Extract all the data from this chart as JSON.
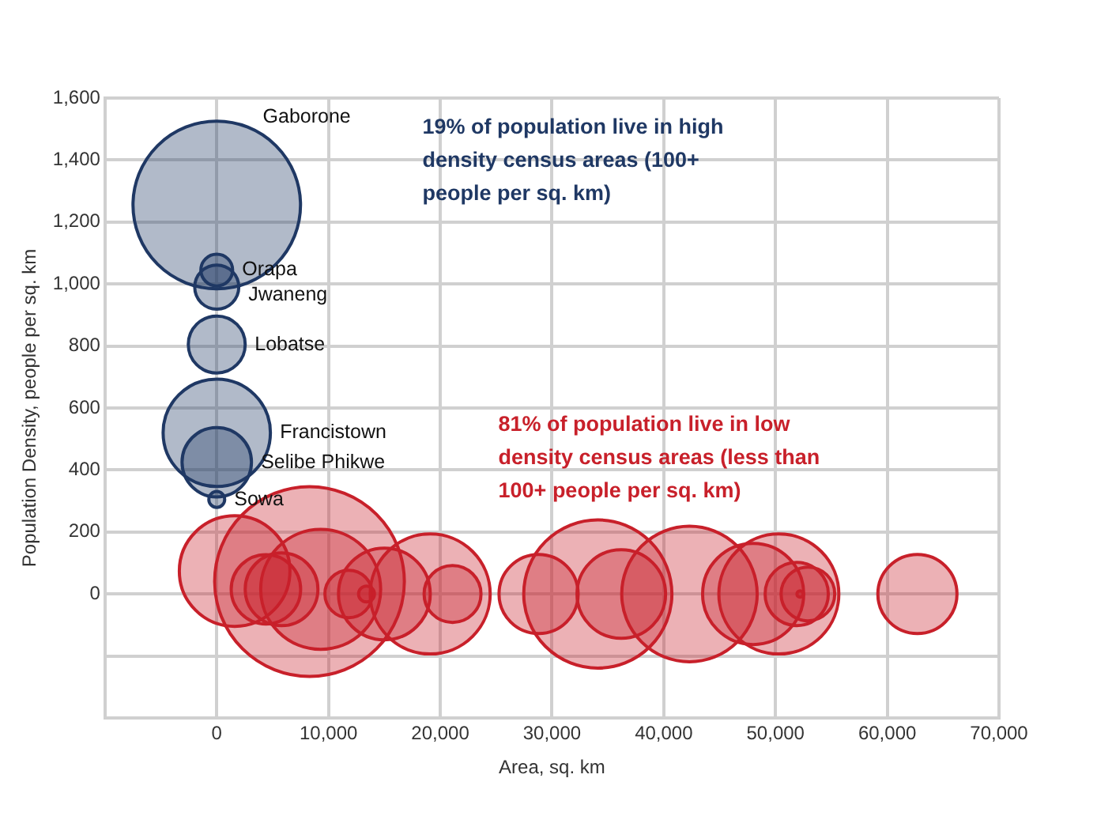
{
  "chart_data": {
    "type": "bubble",
    "xlabel": "Area, sq. km",
    "ylabel": "Population Density, people per sq. km",
    "xlim": [
      -10000,
      70000
    ],
    "xticks": [
      {
        "value": -10000,
        "label": null
      },
      {
        "value": 0,
        "label": "0"
      },
      {
        "value": 10000,
        "label": "10,000"
      },
      {
        "value": 20000,
        "label": "20,000"
      },
      {
        "value": 30000,
        "label": "30,000"
      },
      {
        "value": 40000,
        "label": "40,000"
      },
      {
        "value": 50000,
        "label": "50,000"
      },
      {
        "value": 60000,
        "label": "60,000"
      },
      {
        "value": 70000,
        "label": "70,000"
      }
    ],
    "ylim": [
      -400,
      1600
    ],
    "yticks": [
      {
        "value": -400,
        "label": null
      },
      {
        "value": -200,
        "label": null
      },
      {
        "value": 0,
        "label": "0"
      },
      {
        "value": 200,
        "label": "200"
      },
      {
        "value": 400,
        "label": "400"
      },
      {
        "value": 600,
        "label": "600"
      },
      {
        "value": 800,
        "label": "800"
      },
      {
        "value": 1000,
        "label": "1,000"
      },
      {
        "value": 1200,
        "label": "1,200"
      },
      {
        "value": 1400,
        "label": "1,400"
      },
      {
        "value": 1600,
        "label": "1,600"
      }
    ],
    "grid": true,
    "series": [
      {
        "color": "#1f3864",
        "x": [
          0,
          0,
          0,
          0,
          0,
          0,
          0
        ],
        "values": [
          1255,
          1045,
          990,
          805,
          520,
          425,
          305
        ],
        "sizes": [
          0.78,
          0.028,
          0.054,
          0.09,
          0.32,
          0.134,
          0.007
        ]
      },
      {
        "color": "#c8202a",
        "x": [
          1600,
          8300,
          4400,
          5800,
          9300,
          11800,
          13400,
          15000,
          19100,
          21100,
          28800,
          34100,
          36200,
          42300,
          48000,
          50300,
          51900,
          52900,
          52200,
          62700
        ],
        "values": [
          74,
          40,
          15,
          15,
          15,
          0,
          0,
          0,
          0,
          0,
          0,
          0,
          0,
          0,
          0,
          0,
          0,
          0,
          0,
          0
        ],
        "sizes": [
          0.34,
          1,
          0.134,
          0.147,
          0.4,
          0.0625,
          0.007,
          0.234,
          0.4,
          0.09,
          0.174,
          0.61,
          0.218,
          0.51,
          0.284,
          0.4,
          0.111,
          0.08,
          0.0011,
          0.174
        ]
      }
    ],
    "annotations": [
      "19% of population live in high density census areas (100+ people per sq. km)",
      "81% of population live in low density census areas (less than 100+ people per sq. km)",
      "Gaborone",
      "Orapa",
      "Jwaneng",
      "Lobatse",
      "Francistown",
      "Selibe Phikwe",
      "Sowa"
    ]
  }
}
